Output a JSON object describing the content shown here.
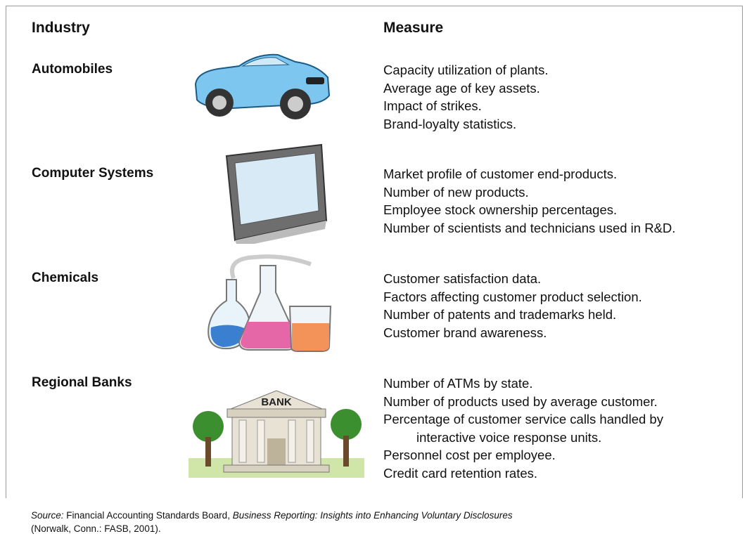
{
  "header": {
    "industry": "Industry",
    "measure": "Measure"
  },
  "rows": [
    {
      "industry": "Automobiles",
      "measures": [
        "Capacity utilization of plants.",
        "Average age of key assets.",
        "Impact of strikes.",
        "Brand-loyalty statistics."
      ]
    },
    {
      "industry": "Computer Systems",
      "measures": [
        "Market profile of customer end-products.",
        "Number of new products.",
        "Employee stock ownership percentages.",
        "Number of scientists and technicians used in R&D."
      ]
    },
    {
      "industry": "Chemicals",
      "measures": [
        "Customer satisfaction data.",
        "Factors affecting customer product selection.",
        "Number of patents and trademarks held.",
        "Customer brand awareness."
      ]
    },
    {
      "industry": "Regional Banks",
      "measures": [
        "Number of ATMs by state.",
        "Number of products used by average customer.",
        [
          "Percentage of customer service calls handled by",
          "interactive voice response units."
        ],
        "Personnel cost per employee.",
        "Credit card retention rates."
      ]
    }
  ],
  "bank_sign": "BANK",
  "source": {
    "label": "Source:",
    "publisher": "Financial Accounting Standards Board,",
    "title": "Business Reporting: Insights into Enhancing Voluntary Disclosures",
    "details": "(Norwalk, Conn.: FASB, 2001)."
  }
}
